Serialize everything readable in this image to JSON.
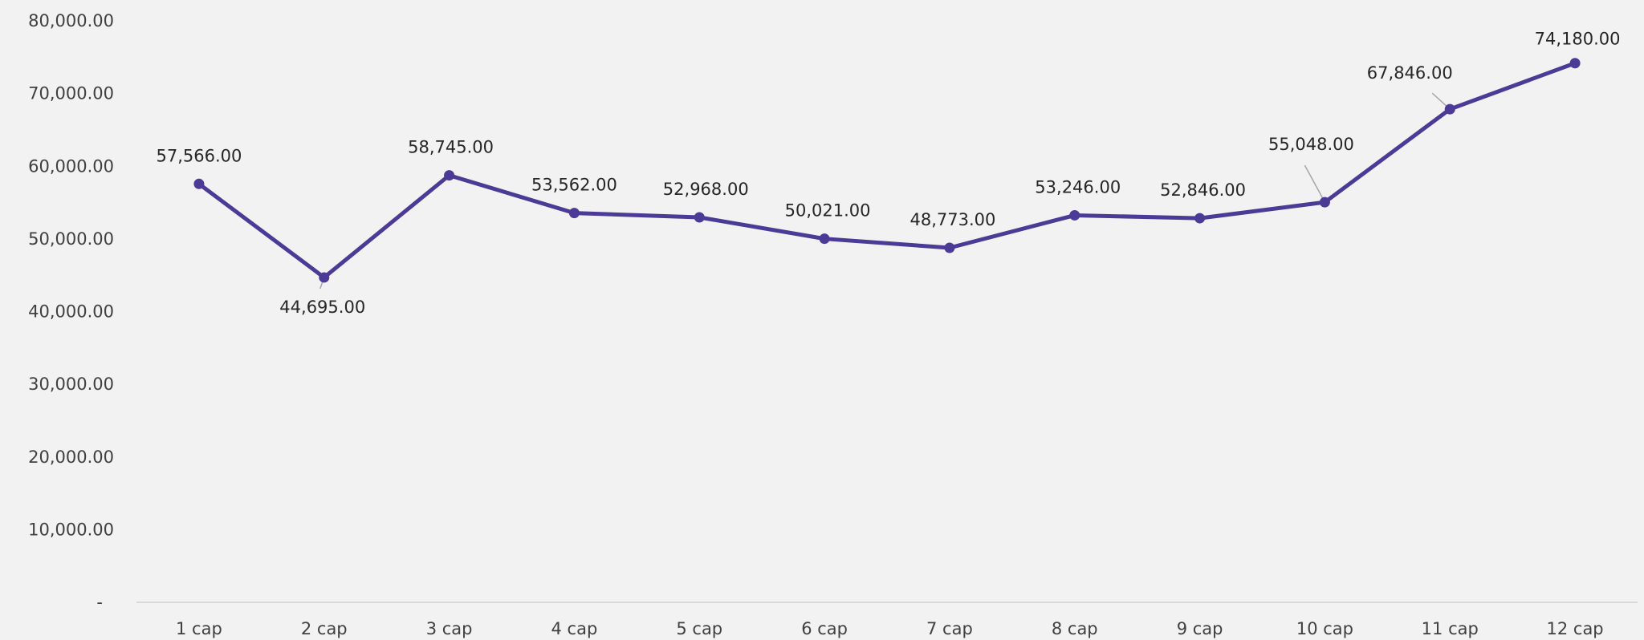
{
  "chart_data": {
    "type": "line",
    "title": "",
    "xlabel": "",
    "ylabel": "",
    "categories": [
      "1 cap",
      "2 cap",
      "3 cap",
      "4 cap",
      "5 cap",
      "6 cap",
      "7 cap",
      "8 cap",
      "9 cap",
      "10 cap",
      "11 cap",
      "12 cap"
    ],
    "series": [
      {
        "values": [
          57566,
          44695,
          58745,
          53562,
          52968,
          50021,
          48773,
          53246,
          52846,
          55048,
          67846,
          74180
        ],
        "data_labels": [
          "57,566.00",
          "44,695.00",
          "58,745.00",
          "53,562.00",
          "52,968.00",
          "50,021.00",
          "48,773.00",
          "53,246.00",
          "52,846.00",
          "55,048.00",
          "67,846.00",
          "74,180.00"
        ],
        "color": "#4b3a96"
      }
    ],
    "ylim": [
      0,
      80000
    ],
    "yticks": [
      0,
      10000,
      20000,
      30000,
      40000,
      50000,
      60000,
      70000,
      80000
    ],
    "ytick_labels": [
      "-",
      "10,000.00",
      "20,000.00",
      "30,000.00",
      "40,000.00",
      "50,000.00",
      "60,000.00",
      "70,000.00",
      "80,000.00"
    ],
    "grid": false,
    "legend": "none",
    "colors": {
      "background": "#f2f2f2",
      "axis": "#d9d9d9",
      "text": "#404040"
    }
  }
}
